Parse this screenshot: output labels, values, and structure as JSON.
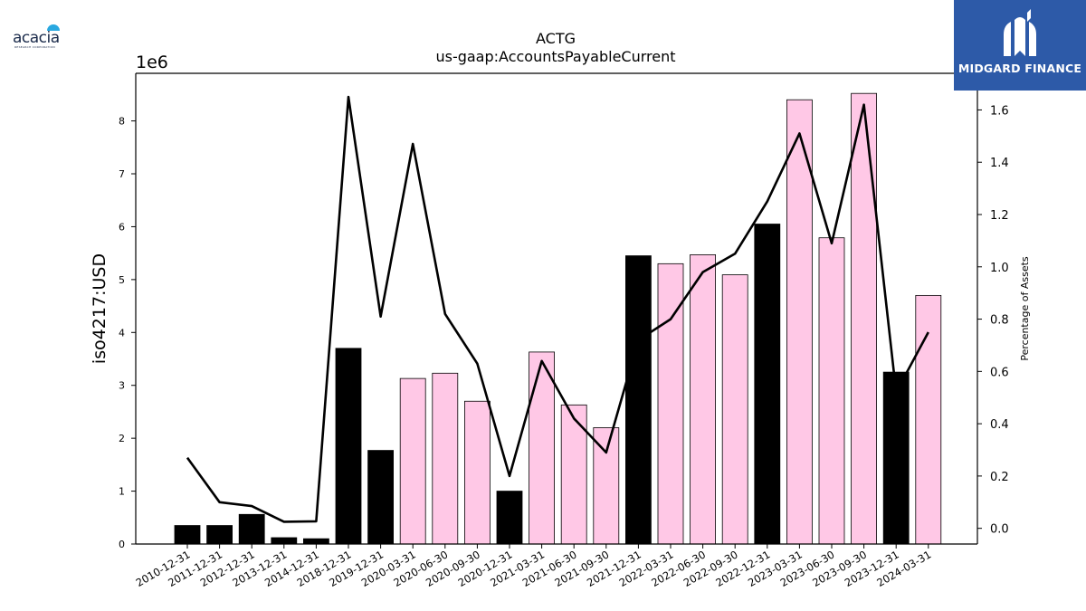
{
  "chart_data": {
    "type": "bar+line",
    "title": "ACTG",
    "subtitle": "us-gaap:AccountsPayableCurrent",
    "ylabel": "iso4217:USD",
    "y2label": "Percentage of Assets",
    "y_scale_label": "1e6",
    "ylim": [
      0,
      8900000
    ],
    "y2lim": [
      -0.06,
      1.74
    ],
    "yticks": [
      0,
      1,
      2,
      3,
      4,
      5,
      6,
      7,
      8
    ],
    "y2ticks": [
      "0.0",
      "0.2",
      "0.4",
      "0.6",
      "0.8",
      "1.0",
      "1.2",
      "1.4",
      "1.6"
    ],
    "categories": [
      "2010-12-31",
      "2011-12-31",
      "2012-12-31",
      "2013-12-31",
      "2014-12-31",
      "2018-12-31",
      "2019-12-31",
      "2020-03-31",
      "2020-06-30",
      "2020-09-30",
      "2020-12-31",
      "2021-03-31",
      "2021-06-30",
      "2021-09-30",
      "2021-12-31",
      "2022-03-31",
      "2022-06-30",
      "2022-09-30",
      "2022-12-31",
      "2023-03-31",
      "2023-06-30",
      "2023-09-30",
      "2023-12-31",
      "2024-03-31"
    ],
    "bar_values": [
      350000,
      350000,
      560000,
      120000,
      100000,
      3700000,
      1770000,
      3130000,
      3230000,
      2700000,
      1000000,
      3630000,
      2630000,
      2200000,
      5450000,
      5300000,
      5470000,
      5090000,
      6050000,
      8400000,
      5790000,
      8520000,
      3250000,
      4700000
    ],
    "bar_period": [
      "annual",
      "annual",
      "annual",
      "annual",
      "annual",
      "annual",
      "annual",
      "quarter",
      "quarter",
      "quarter",
      "annual",
      "quarter",
      "quarter",
      "quarter",
      "annual",
      "quarter",
      "quarter",
      "quarter",
      "annual",
      "quarter",
      "quarter",
      "quarter",
      "annual",
      "quarter"
    ],
    "line_values": [
      0.27,
      0.1,
      0.085,
      0.025,
      0.027,
      1.65,
      0.81,
      1.47,
      0.82,
      0.63,
      0.2,
      0.64,
      0.42,
      0.29,
      0.72,
      0.8,
      0.98,
      1.05,
      1.25,
      1.51,
      1.09,
      1.62,
      0.52,
      0.75
    ],
    "colors": {
      "annual": "#000000",
      "quarter": "#ffc8e6",
      "line": "#000000"
    },
    "grid": false
  },
  "logos": {
    "left_word": "acacia",
    "left_sub": "RESEARCH CORPORATION",
    "right_brand": "MIDGARD FINANCE"
  }
}
